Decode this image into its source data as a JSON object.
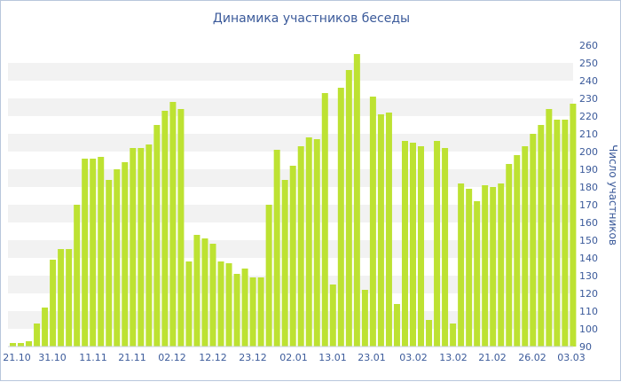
{
  "chart_data": {
    "type": "bar",
    "title": "Динамика участников беседы",
    "ylabel": "Число участников",
    "xlabel": "",
    "ylim": [
      90,
      260
    ],
    "y_ticks": [
      90,
      100,
      110,
      120,
      130,
      140,
      150,
      160,
      170,
      180,
      190,
      200,
      210,
      220,
      230,
      240,
      250,
      260
    ],
    "x_tick_labels": [
      "21.10",
      "31.10",
      "11.11",
      "21.11",
      "02.12",
      "12.12",
      "23.12",
      "02.01",
      "13.01",
      "23.01",
      "03.02",
      "13.02",
      "21.02",
      "26.02",
      "03.03"
    ],
    "y_axis_side": "right",
    "grid": "horizontal bands",
    "bar_color": "#bde232",
    "values": [
      92,
      92,
      93,
      103,
      112,
      139,
      145,
      145,
      170,
      196,
      196,
      197,
      184,
      190,
      194,
      202,
      202,
      204,
      215,
      223,
      228,
      224,
      138,
      153,
      151,
      148,
      138,
      137,
      131,
      134,
      129,
      129,
      170,
      201,
      184,
      192,
      203,
      208,
      207,
      233,
      125,
      236,
      246,
      255,
      122,
      231,
      221,
      222,
      114,
      206,
      205,
      203,
      105,
      206,
      202,
      103,
      182,
      179,
      172,
      181,
      180,
      182,
      193,
      198,
      203,
      210,
      215,
      224,
      218,
      218,
      227
    ]
  }
}
